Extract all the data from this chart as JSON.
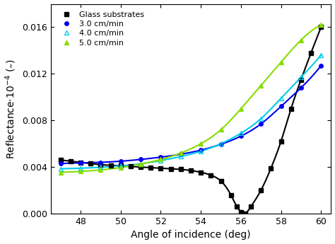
{
  "title": "",
  "xlabel": "Angle of incidence (deg)",
  "xlim": [
    46.5,
    60.5
  ],
  "ylim": [
    0.0,
    0.018
  ],
  "yticks": [
    0.0,
    0.004,
    0.008,
    0.012,
    0.016
  ],
  "xticks": [
    48,
    50,
    52,
    54,
    56,
    58,
    60
  ],
  "glass": {
    "label": "Glass substrates",
    "color": "#000000",
    "marker": "s",
    "markersize": 5,
    "linewidth": 1.5,
    "x": [
      47.0,
      47.5,
      48.0,
      48.5,
      49.0,
      49.5,
      50.0,
      50.5,
      51.0,
      51.5,
      52.0,
      52.5,
      53.0,
      53.5,
      54.0,
      54.5,
      55.0,
      55.5,
      55.8,
      56.0,
      56.2,
      56.5,
      57.0,
      57.5,
      58.0,
      58.5,
      59.0,
      59.5,
      60.0
    ],
    "y": [
      0.0046,
      0.0045,
      0.0044,
      0.0043,
      0.0042,
      0.00415,
      0.0041,
      0.00405,
      0.004,
      0.00395,
      0.0039,
      0.00385,
      0.0038,
      0.0037,
      0.00355,
      0.0033,
      0.0028,
      0.0016,
      0.0006,
      0.00015,
      2e-05,
      0.0006,
      0.002,
      0.0039,
      0.0062,
      0.009,
      0.0115,
      0.0138,
      0.016
    ]
  },
  "cm3": {
    "label": "3.0 cm/min",
    "color": "#0000ee",
    "marker": "o",
    "markersize": 4,
    "linewidth": 1.5,
    "x": [
      47.0,
      48.0,
      49.0,
      50.0,
      51.0,
      52.0,
      53.0,
      54.0,
      55.0,
      56.0,
      57.0,
      58.0,
      59.0,
      60.0
    ],
    "y": [
      0.0043,
      0.00435,
      0.0044,
      0.0045,
      0.00465,
      0.00485,
      0.0051,
      0.00545,
      0.00595,
      0.00665,
      0.0077,
      0.0092,
      0.0108,
      0.0127
    ]
  },
  "cm4": {
    "label": "4.0 cm/min",
    "color": "#00ccee",
    "marker": "^",
    "markersize": 4,
    "linewidth": 1.5,
    "x": [
      47.0,
      48.0,
      49.0,
      50.0,
      51.0,
      52.0,
      53.0,
      54.0,
      55.0,
      56.0,
      57.0,
      58.0,
      59.0,
      60.0
    ],
    "y": [
      0.00385,
      0.0039,
      0.00398,
      0.0041,
      0.00428,
      0.00455,
      0.0049,
      0.00535,
      0.006,
      0.0069,
      0.00815,
      0.0099,
      0.0117,
      0.0136
    ]
  },
  "cm5": {
    "label": "5.0 cm/min",
    "color": "#88dd00",
    "marker": "^",
    "markersize": 4,
    "linewidth": 1.5,
    "x": [
      47.0,
      48.0,
      49.0,
      50.0,
      51.0,
      52.0,
      53.0,
      54.0,
      55.0,
      56.0,
      57.0,
      58.0,
      59.0,
      60.0
    ],
    "y": [
      0.00355,
      0.00362,
      0.00375,
      0.00395,
      0.00425,
      0.00465,
      0.0052,
      0.006,
      0.0072,
      0.009,
      0.011,
      0.013,
      0.0149,
      0.0162
    ]
  },
  "background_color": "#ffffff",
  "legend_fontsize": 8,
  "tick_fontsize": 9,
  "label_fontsize": 10
}
